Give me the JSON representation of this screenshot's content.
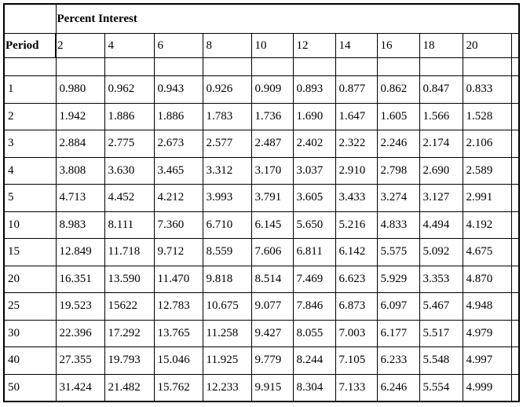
{
  "title": "Percent Interest",
  "row_header_label": "Period",
  "interest_rates": [
    "2",
    "4",
    "6",
    "8",
    "10",
    "12",
    "14",
    "16",
    "18",
    "20"
  ],
  "rows": [
    {
      "period": "1",
      "values": [
        "0.980",
        "0.962",
        "0.943",
        "0.926",
        "0.909",
        "0.893",
        "0.877",
        "0.862",
        "0.847",
        "0.833"
      ]
    },
    {
      "period": "2",
      "values": [
        "1.942",
        "1.886",
        "1.886",
        "1.783",
        "1.736",
        "1.690",
        "1.647",
        "1.605",
        "1.566",
        "1.528"
      ]
    },
    {
      "period": "3",
      "values": [
        "2.884",
        "2.775",
        "2.673",
        "2.577",
        "2.487",
        "2.402",
        "2.322",
        "2.246",
        "2.174",
        "2.106"
      ]
    },
    {
      "period": "4",
      "values": [
        "3.808",
        "3.630",
        "3.465",
        "3.312",
        "3.170",
        "3.037",
        "2.910",
        "2.798",
        "2.690",
        "2.589"
      ]
    },
    {
      "period": "5",
      "values": [
        "4.713",
        "4.452",
        "4.212",
        "3.993",
        "3.791",
        "3.605",
        "3.433",
        "3.274",
        "3.127",
        "2.991"
      ]
    },
    {
      "period": "10",
      "values": [
        "8.983",
        "8.111",
        "7.360",
        "6.710",
        "6.145",
        "5.650",
        "5.216",
        "4.833",
        "4.494",
        "4.192"
      ]
    },
    {
      "period": "15",
      "values": [
        "12.849",
        "11.718",
        "9.712",
        "8.559",
        "7.606",
        "6.811",
        "6.142",
        "5.575",
        "5.092",
        "4.675"
      ]
    },
    {
      "period": "20",
      "values": [
        "16.351",
        "13.590",
        "11.470",
        "9.818",
        "8.514",
        "7.469",
        "6.623",
        "5.929",
        "3.353",
        "4.870"
      ]
    },
    {
      "period": "25",
      "values": [
        "19.523",
        "15622",
        "12.783",
        "10.675",
        "9.077",
        "7.846",
        "6.873",
        "6.097",
        "5.467",
        "4.948"
      ]
    },
    {
      "period": "30",
      "values": [
        "22.396",
        "17.292",
        "13.765",
        "11.258",
        "9.427",
        "8.055",
        "7.003",
        "6.177",
        "5.517",
        "4.979"
      ]
    },
    {
      "period": "40",
      "values": [
        "27.355",
        "19.793",
        "15.046",
        "11.925",
        "9.779",
        "8.244",
        "7.105",
        "6.233",
        "5.548",
        "4.997"
      ]
    },
    {
      "period": "50",
      "values": [
        "31.424",
        "21.482",
        "15.762",
        "12.233",
        "9.915",
        "8.304",
        "7.133",
        "6.246",
        "5.554",
        "4.999"
      ]
    }
  ]
}
